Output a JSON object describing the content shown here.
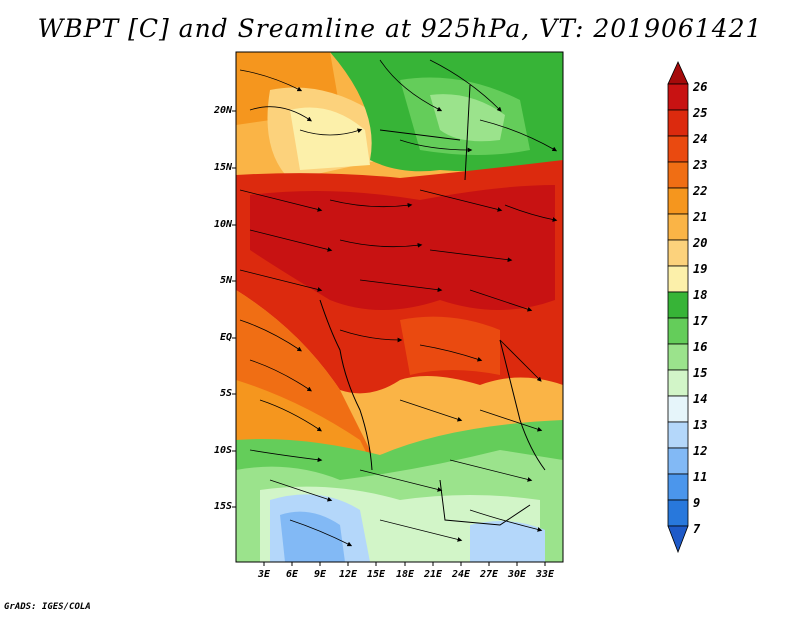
{
  "title": "WBPT [C] and Sreamline at 925hPa, VT: 2019061421",
  "lat_labels": [
    "20N",
    "15N",
    "10N",
    "5N",
    "EQ",
    "5S",
    "10S",
    "15S"
  ],
  "lon_labels": [
    "3E",
    "6E",
    "9E",
    "12E",
    "15E",
    "18E",
    "21E",
    "24E",
    "27E",
    "30E",
    "33E"
  ],
  "colorbar": {
    "labels": [
      "26",
      "25",
      "24",
      "23",
      "22",
      "21",
      "20",
      "19",
      "18",
      "17",
      "16",
      "15",
      "14",
      "13",
      "12",
      "11",
      "9",
      "7"
    ],
    "colors": [
      "#a50a0a",
      "#c81212",
      "#dc2a0e",
      "#ea4a10",
      "#f06e14",
      "#f5961e",
      "#fab446",
      "#fcd27c",
      "#fcf0aa",
      "#37b437",
      "#64cd5a",
      "#9be38c",
      "#d2f5c8",
      "#e6f5fa",
      "#b4d7fa",
      "#82b9f5",
      "#4b96ec",
      "#2878dc",
      "#1e5ac8"
    ]
  },
  "field_colors": {
    "hot": "#c81212",
    "warm": "#ea4a10",
    "orange": "#f5961e",
    "tan": "#fab446",
    "yellow": "#fcd27c",
    "cream": "#fcf0aa",
    "green": "#37b437",
    "lightgreen": "#9be38c",
    "palegreen": "#d2f5c8",
    "blue": "#b4d7fa",
    "deepblue": "#82b9f5"
  },
  "footer": "GrADS: IGES/COLA"
}
